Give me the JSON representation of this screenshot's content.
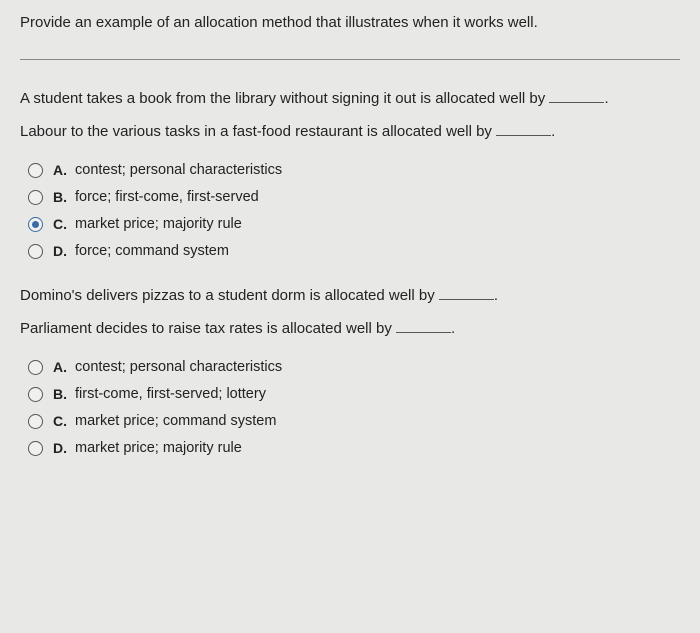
{
  "title": "Provide an example of an allocation method that illustrates when it works well.",
  "question1": {
    "line1_a": "A student takes a book from the library without signing it out is allocated well by ",
    "line1_b": ".",
    "line2_a": "Labour to the various tasks in a fast-food restaurant is allocated well by ",
    "line2_b": ".",
    "options": [
      {
        "letter": "A.",
        "text": "contest; personal characteristics",
        "selected": false
      },
      {
        "letter": "B.",
        "text": "force; first-come, first-served",
        "selected": false
      },
      {
        "letter": "C.",
        "text": "market price; majority rule",
        "selected": true
      },
      {
        "letter": "D.",
        "text": "force; command system",
        "selected": false
      }
    ]
  },
  "question2": {
    "line1_a": "Domino's delivers pizzas to a student dorm is allocated well by ",
    "line1_b": ".",
    "line2_a": "Parliament decides to raise tax rates is allocated well by ",
    "line2_b": ".",
    "options": [
      {
        "letter": "A.",
        "text": "contest; personal characteristics",
        "selected": false
      },
      {
        "letter": "B.",
        "text": "first-come, first-served; lottery",
        "selected": false
      },
      {
        "letter": "C.",
        "text": "market price; command system",
        "selected": false
      },
      {
        "letter": "D.",
        "text": "market price; majority rule",
        "selected": false
      }
    ]
  }
}
